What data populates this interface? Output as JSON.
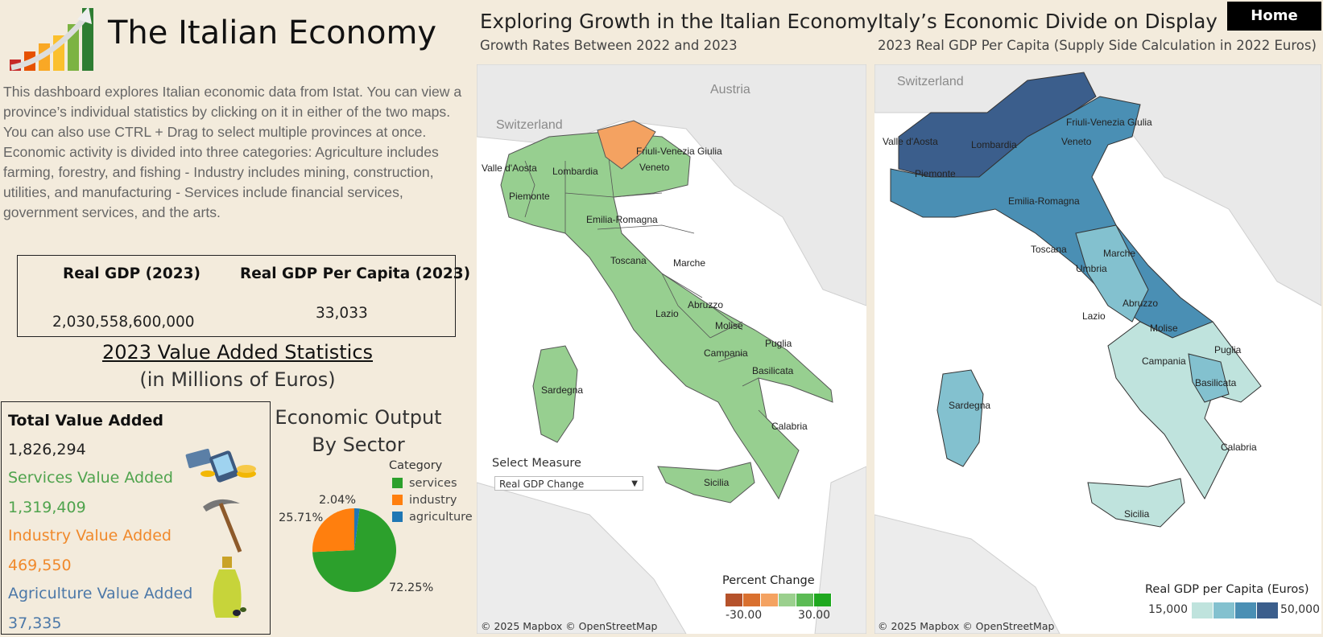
{
  "header": {
    "title": "The Italian Economy",
    "intro": "This dashboard explores Italian economic data from Istat. You can view a province’s individual statistics by clicking on it in either of the two maps. You can also use CTRL + Drag to select multiple provinces at once. Economic activity is divided into three categories: Agriculture includes farming, forestry, and fishing - Industry includes mining, construction, utilities, and manufacturing - Services include financial services, government services, and the arts."
  },
  "kpis": {
    "gdp_label": "Real GDP (2023)",
    "gdp_value": "2,030,558,600,000",
    "per_capita_label": "Real GDP Per Capita (2023)",
    "per_capita_value": "33,033"
  },
  "value_added": {
    "title": "2023 Value Added Statistics",
    "subtitle": "(in Millions of Euros)",
    "total_label": "Total Value Added",
    "total_value": "1,826,294",
    "services_label": "Services Value Added",
    "services_value": "1,319,409",
    "industry_label": "Industry Value Added",
    "industry_value": "469,550",
    "agriculture_label": "Agriculture Value Added",
    "agriculture_value": "37,335",
    "colors": {
      "services": "#4fa34d",
      "industry": "#f0892b",
      "agriculture": "#4c78a8"
    }
  },
  "chart_data": {
    "type": "pie",
    "title_line1": "Economic Output",
    "title_line2": "By Sector",
    "legend_title": "Category",
    "categories": [
      "services",
      "industry",
      "agriculture"
    ],
    "values": [
      72.25,
      25.71,
      2.04
    ],
    "labels": [
      "72.25%",
      "25.71%",
      "2.04%"
    ],
    "colors": [
      "#2ca02c",
      "#ff7f0e",
      "#1f77b4"
    ]
  },
  "map_growth": {
    "title": "Exploring Growth in the Italian Economy",
    "subtitle": "Growth Rates Between 2022 and 2023",
    "select_label": "Select Measure",
    "select_value": "Real GDP Change",
    "ramp_title": "Percent Change",
    "ramp_min": "-30.00",
    "ramp_max": "30.00",
    "ramp_colors": [
      "#b5522b",
      "#d9702f",
      "#f4a261",
      "#9bd08e",
      "#5cbb55",
      "#1fa81f"
    ],
    "credit": "© 2025 Mapbox © OpenStreetMap",
    "countries": [
      "Austria",
      "Switzerland"
    ],
    "regions": [
      "Valle d'Aosta",
      "Lombardia",
      "Piemonte",
      "Friuli-Venezia Giulia",
      "Veneto",
      "Emilia-Romagna",
      "Toscana",
      "Marche",
      "Lazio",
      "Abruzzo",
      "Molise",
      "Campania",
      "Puglia",
      "Basilicata",
      "Calabria",
      "Sardegna",
      "Sicilia"
    ],
    "fill_main": "#97cf90",
    "fill_highlight": "#f4a261"
  },
  "map_gdp": {
    "title": "Italy’s Economic Divide on Display",
    "subtitle": "2023 Real GDP Per Capita (Supply Side Calculation in 2022 Euros)",
    "ramp_title": "Real GDP per Capita (Euros)",
    "ramp_min": "15,000",
    "ramp_max": "50,000",
    "ramp_colors": [
      "#bfe3dd",
      "#83c1cf",
      "#4a8fb4",
      "#3b5e8c"
    ],
    "credit": "© 2025 Mapbox © OpenStreetMap",
    "countries": [
      "Switzerland"
    ],
    "regions": [
      "Valle d'Aosta",
      "Lombardia",
      "Piemonte",
      "Friuli-Venezia Giulia",
      "Veneto",
      "Emilia-Romagna",
      "Toscana",
      "Marche",
      "Umbria",
      "Lazio",
      "Abruzzo",
      "Molise",
      "Campania",
      "Puglia",
      "Basilicata",
      "Calabria",
      "Sardegna",
      "Sicilia"
    ]
  },
  "nav": {
    "home_label": "Home"
  }
}
